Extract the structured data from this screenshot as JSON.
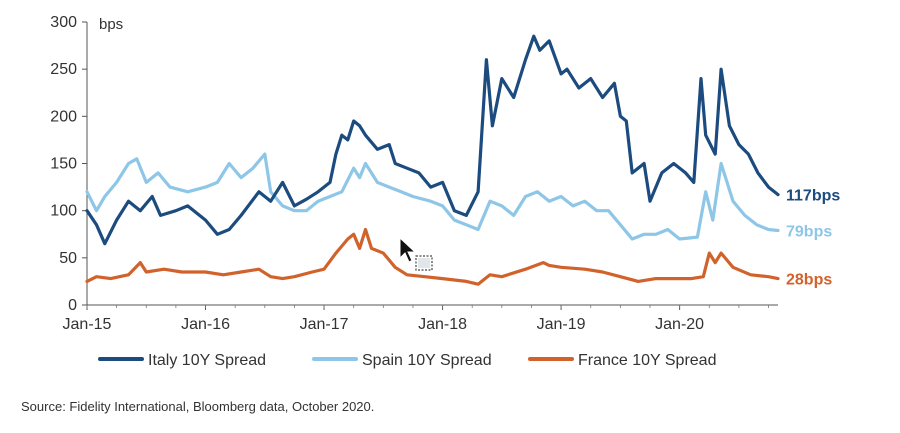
{
  "chart_data": {
    "type": "line",
    "title": "",
    "ylabel": "bps",
    "xlabel": "",
    "ylim": [
      0,
      300
    ],
    "xlim": [
      2015.0,
      2020.83
    ],
    "y_ticks": [
      "0",
      "50",
      "100",
      "150",
      "200",
      "250",
      "300"
    ],
    "x_ticks": [
      {
        "label": "Jan-15",
        "x": 2015.0
      },
      {
        "label": "Jan-16",
        "x": 2016.0
      },
      {
        "label": "Jan-17",
        "x": 2017.0
      },
      {
        "label": "Jan-18",
        "x": 2018.0
      },
      {
        "label": "Jan-19",
        "x": 2019.0
      },
      {
        "label": "Jan-20",
        "x": 2020.0
      }
    ],
    "series": [
      {
        "name": "Italy 10Y Spread",
        "color": "#1c4b7f",
        "end_label": "117bps",
        "points": [
          [
            2015.0,
            100
          ],
          [
            2015.08,
            85
          ],
          [
            2015.15,
            65
          ],
          [
            2015.25,
            90
          ],
          [
            2015.35,
            110
          ],
          [
            2015.45,
            100
          ],
          [
            2015.55,
            115
          ],
          [
            2015.62,
            95
          ],
          [
            2015.75,
            100
          ],
          [
            2015.85,
            105
          ],
          [
            2016.0,
            90
          ],
          [
            2016.1,
            75
          ],
          [
            2016.2,
            80
          ],
          [
            2016.3,
            95
          ],
          [
            2016.45,
            120
          ],
          [
            2016.55,
            110
          ],
          [
            2016.65,
            130
          ],
          [
            2016.75,
            105
          ],
          [
            2016.85,
            112
          ],
          [
            2016.95,
            120
          ],
          [
            2017.05,
            130
          ],
          [
            2017.1,
            160
          ],
          [
            2017.15,
            180
          ],
          [
            2017.2,
            175
          ],
          [
            2017.25,
            195
          ],
          [
            2017.3,
            190
          ],
          [
            2017.35,
            180
          ],
          [
            2017.45,
            165
          ],
          [
            2017.55,
            170
          ],
          [
            2017.6,
            150
          ],
          [
            2017.7,
            145
          ],
          [
            2017.8,
            140
          ],
          [
            2017.9,
            125
          ],
          [
            2018.0,
            130
          ],
          [
            2018.1,
            100
          ],
          [
            2018.2,
            95
          ],
          [
            2018.3,
            120
          ],
          [
            2018.37,
            260
          ],
          [
            2018.42,
            190
          ],
          [
            2018.5,
            240
          ],
          [
            2018.6,
            220
          ],
          [
            2018.7,
            260
          ],
          [
            2018.77,
            285
          ],
          [
            2018.82,
            270
          ],
          [
            2018.9,
            280
          ],
          [
            2019.0,
            245
          ],
          [
            2019.05,
            250
          ],
          [
            2019.15,
            230
          ],
          [
            2019.25,
            240
          ],
          [
            2019.35,
            220
          ],
          [
            2019.45,
            235
          ],
          [
            2019.5,
            200
          ],
          [
            2019.55,
            195
          ],
          [
            2019.6,
            140
          ],
          [
            2019.7,
            150
          ],
          [
            2019.75,
            110
          ],
          [
            2019.85,
            140
          ],
          [
            2019.95,
            150
          ],
          [
            2020.05,
            140
          ],
          [
            2020.12,
            130
          ],
          [
            2020.18,
            240
          ],
          [
            2020.22,
            180
          ],
          [
            2020.3,
            160
          ],
          [
            2020.35,
            250
          ],
          [
            2020.42,
            190
          ],
          [
            2020.5,
            170
          ],
          [
            2020.58,
            160
          ],
          [
            2020.66,
            140
          ],
          [
            2020.75,
            125
          ],
          [
            2020.8,
            120
          ],
          [
            2020.83,
            117
          ]
        ]
      },
      {
        "name": "Spain 10Y Spread",
        "color": "#8ec6e8",
        "end_label": "79bps",
        "points": [
          [
            2015.0,
            120
          ],
          [
            2015.08,
            100
          ],
          [
            2015.15,
            115
          ],
          [
            2015.25,
            130
          ],
          [
            2015.35,
            150
          ],
          [
            2015.42,
            155
          ],
          [
            2015.5,
            130
          ],
          [
            2015.6,
            140
          ],
          [
            2015.7,
            125
          ],
          [
            2015.85,
            120
          ],
          [
            2016.0,
            125
          ],
          [
            2016.1,
            130
          ],
          [
            2016.2,
            150
          ],
          [
            2016.3,
            135
          ],
          [
            2016.4,
            145
          ],
          [
            2016.5,
            160
          ],
          [
            2016.55,
            120
          ],
          [
            2016.65,
            105
          ],
          [
            2016.75,
            100
          ],
          [
            2016.85,
            100
          ],
          [
            2016.95,
            110
          ],
          [
            2017.05,
            115
          ],
          [
            2017.15,
            120
          ],
          [
            2017.25,
            145
          ],
          [
            2017.3,
            135
          ],
          [
            2017.35,
            150
          ],
          [
            2017.45,
            130
          ],
          [
            2017.55,
            125
          ],
          [
            2017.65,
            120
          ],
          [
            2017.75,
            115
          ],
          [
            2017.9,
            110
          ],
          [
            2018.0,
            105
          ],
          [
            2018.1,
            90
          ],
          [
            2018.2,
            85
          ],
          [
            2018.3,
            80
          ],
          [
            2018.4,
            110
          ],
          [
            2018.5,
            105
          ],
          [
            2018.6,
            95
          ],
          [
            2018.7,
            115
          ],
          [
            2018.8,
            120
          ],
          [
            2018.9,
            110
          ],
          [
            2019.0,
            115
          ],
          [
            2019.1,
            105
          ],
          [
            2019.2,
            110
          ],
          [
            2019.3,
            100
          ],
          [
            2019.4,
            100
          ],
          [
            2019.5,
            85
          ],
          [
            2019.6,
            70
          ],
          [
            2019.7,
            75
          ],
          [
            2019.8,
            75
          ],
          [
            2019.9,
            80
          ],
          [
            2020.0,
            70
          ],
          [
            2020.15,
            72
          ],
          [
            2020.22,
            120
          ],
          [
            2020.28,
            90
          ],
          [
            2020.35,
            150
          ],
          [
            2020.45,
            110
          ],
          [
            2020.55,
            95
          ],
          [
            2020.65,
            85
          ],
          [
            2020.75,
            80
          ],
          [
            2020.83,
            79
          ]
        ]
      },
      {
        "name": "France 10Y Spread",
        "color": "#d2622b",
        "end_label": "28bps",
        "points": [
          [
            2015.0,
            25
          ],
          [
            2015.08,
            30
          ],
          [
            2015.2,
            28
          ],
          [
            2015.35,
            32
          ],
          [
            2015.45,
            45
          ],
          [
            2015.5,
            35
          ],
          [
            2015.65,
            38
          ],
          [
            2015.8,
            35
          ],
          [
            2016.0,
            35
          ],
          [
            2016.15,
            32
          ],
          [
            2016.3,
            35
          ],
          [
            2016.45,
            38
          ],
          [
            2016.55,
            30
          ],
          [
            2016.65,
            28
          ],
          [
            2016.75,
            30
          ],
          [
            2016.9,
            35
          ],
          [
            2017.0,
            38
          ],
          [
            2017.1,
            55
          ],
          [
            2017.2,
            70
          ],
          [
            2017.25,
            75
          ],
          [
            2017.3,
            60
          ],
          [
            2017.35,
            80
          ],
          [
            2017.4,
            60
          ],
          [
            2017.5,
            55
          ],
          [
            2017.6,
            40
          ],
          [
            2017.7,
            32
          ],
          [
            2017.85,
            30
          ],
          [
            2018.0,
            28
          ],
          [
            2018.2,
            25
          ],
          [
            2018.3,
            22
          ],
          [
            2018.4,
            32
          ],
          [
            2018.5,
            30
          ],
          [
            2018.7,
            38
          ],
          [
            2018.85,
            45
          ],
          [
            2018.9,
            42
          ],
          [
            2019.0,
            40
          ],
          [
            2019.2,
            38
          ],
          [
            2019.35,
            35
          ],
          [
            2019.5,
            30
          ],
          [
            2019.65,
            25
          ],
          [
            2019.8,
            28
          ],
          [
            2019.95,
            28
          ],
          [
            2020.1,
            28
          ],
          [
            2020.2,
            30
          ],
          [
            2020.25,
            55
          ],
          [
            2020.3,
            45
          ],
          [
            2020.35,
            55
          ],
          [
            2020.45,
            40
          ],
          [
            2020.6,
            32
          ],
          [
            2020.75,
            30
          ],
          [
            2020.83,
            28
          ]
        ]
      }
    ],
    "legend_position": "bottom"
  },
  "source": "Source: Fidelity International, Bloomberg data, October 2020."
}
